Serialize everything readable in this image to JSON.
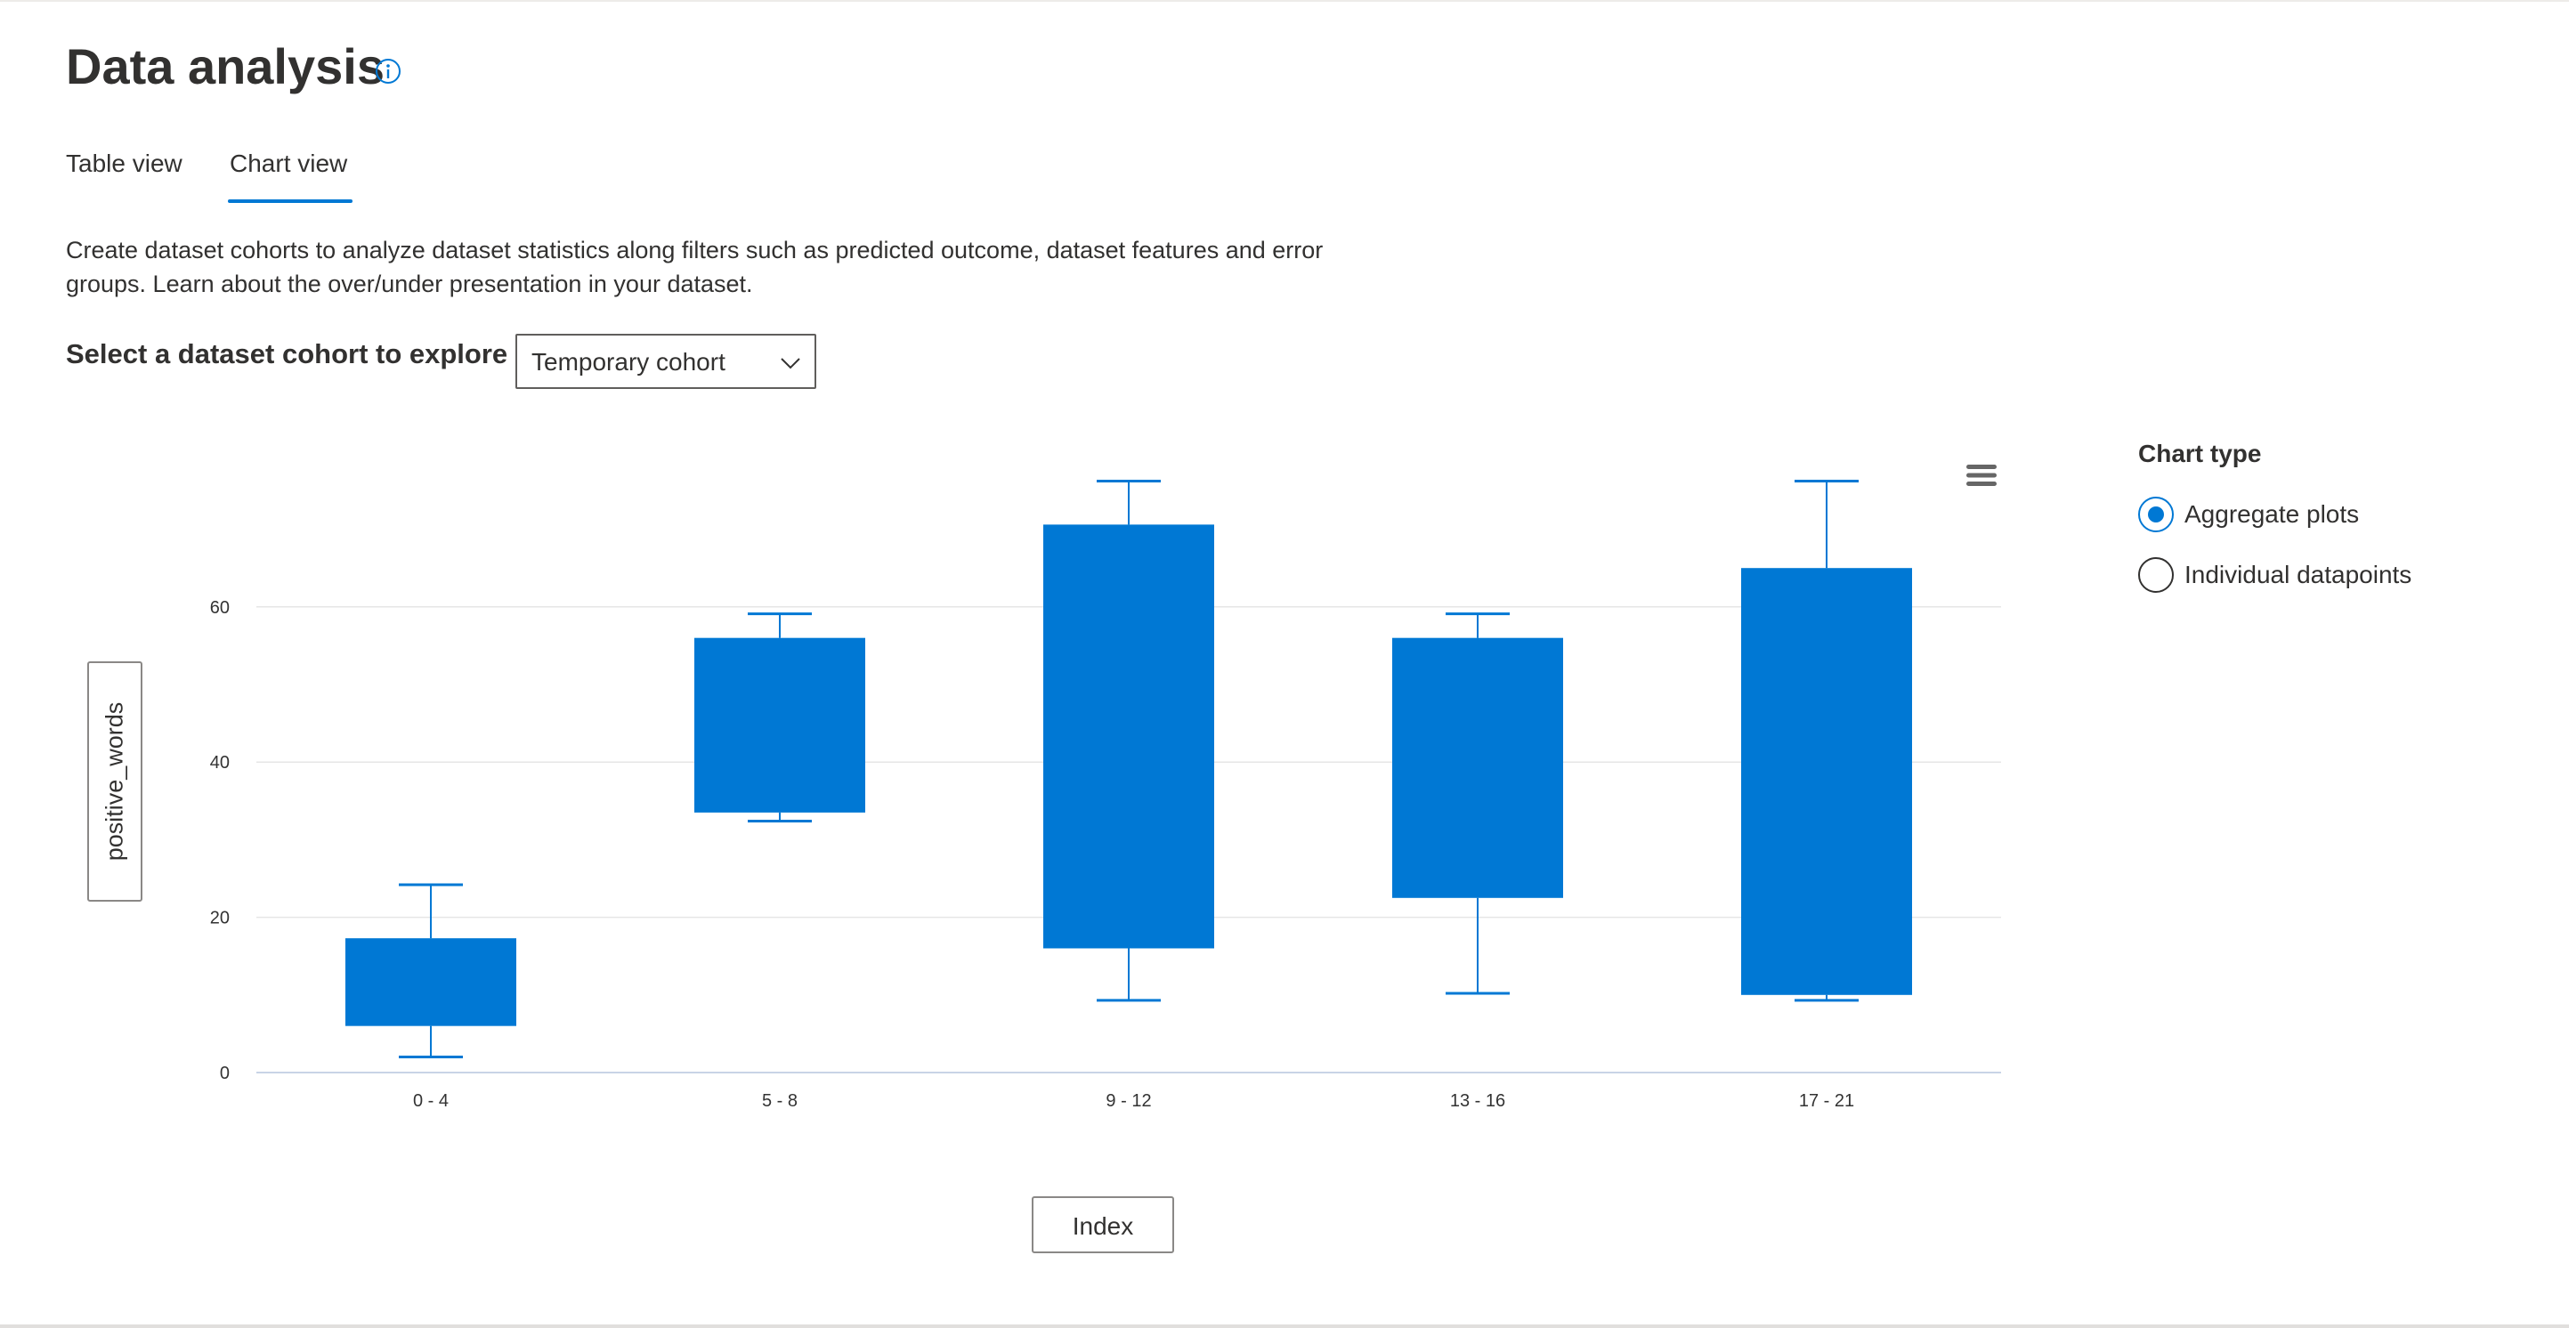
{
  "page": {
    "title": "Data analysis",
    "info_icon": "info-icon"
  },
  "tabs": [
    {
      "label": "Table view",
      "selected": false
    },
    {
      "label": "Chart view",
      "selected": true
    }
  ],
  "description": "Create dataset cohorts to analyze dataset statistics along filters such as predicted outcome, dataset features and error groups. Learn about the over/under presentation in your dataset.",
  "cohort_selector": {
    "label": "Select a dataset cohort to explore",
    "value": "Temporary cohort",
    "icon": "chevron-down-icon"
  },
  "chart_type_panel": {
    "label": "Chart type",
    "options": [
      {
        "label": "Aggregate plots",
        "selected": true
      },
      {
        "label": "Individual datapoints",
        "selected": false
      }
    ]
  },
  "colors": {
    "accent": "#0078d4",
    "box_fill": "#0078d4",
    "grid": "#e6e6e6",
    "text": "#323130"
  },
  "chart_menu_icon": "hamburger-menu-icon",
  "chart_data": {
    "type": "box",
    "xlabel": "Index",
    "ylabel": "positive_words",
    "categories": [
      "0 - 4",
      "5 - 8",
      "9 - 12",
      "13 - 16",
      "17 - 21"
    ],
    "boxes": [
      {
        "category": "0 - 4",
        "min": 2,
        "q1": 6,
        "q3": 17.3,
        "max": 24.2
      },
      {
        "category": "5 - 8",
        "min": 32.4,
        "q1": 33.5,
        "q3": 56,
        "max": 59.1
      },
      {
        "category": "9 - 12",
        "min": 9.3,
        "q1": 16,
        "q3": 70.6,
        "max": 76.2
      },
      {
        "category": "13 - 16",
        "min": 10.2,
        "q1": 22.5,
        "q3": 56,
        "max": 59.1
      },
      {
        "category": "17 - 21",
        "min": 9.3,
        "q1": 10,
        "q3": 65,
        "max": 76.2
      }
    ],
    "ylim": [
      0,
      80
    ],
    "yticks": [
      0,
      20,
      40,
      60
    ],
    "grid": true,
    "legend": false
  }
}
